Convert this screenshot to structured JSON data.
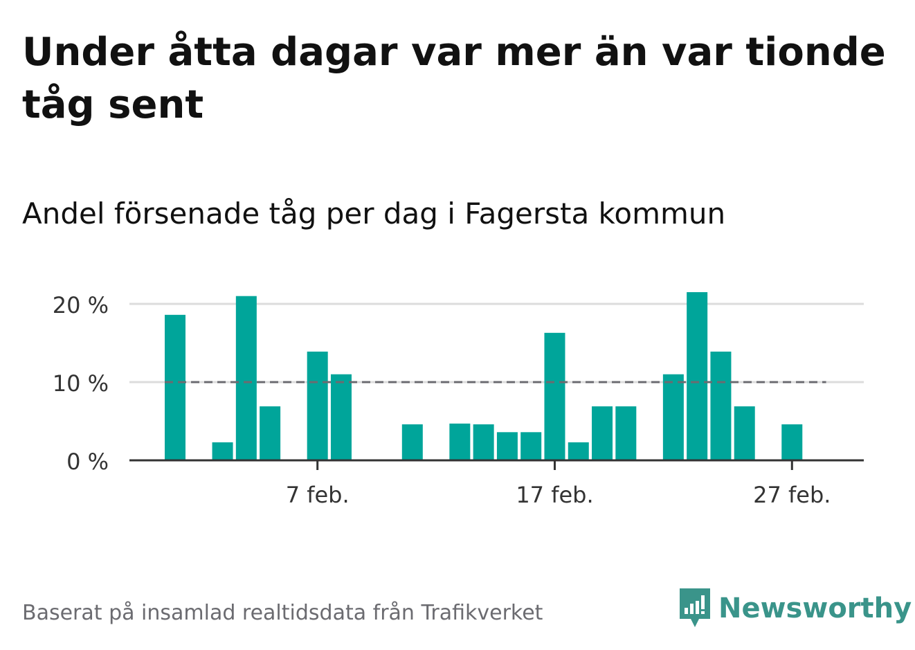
{
  "title": "Under åtta dagar var mer än var tionde tåg sent",
  "subtitle": "Andel försenade tåg per dag i Fagersta kommun",
  "footer": "Baserat på insamlad realtidsdata från Trafikverket",
  "brand": {
    "name": "Newsworthy",
    "icon": "newsworthy-logo-icon",
    "color": "#3a948a"
  },
  "chart_data": {
    "type": "bar",
    "x_start_date": "2024-02-01",
    "x_ticks": [
      "7 feb.",
      "17 feb.",
      "27 feb."
    ],
    "y_ticks": [
      "0 %",
      "10 %",
      "20 %"
    ],
    "ylim": [
      0,
      20
    ],
    "grid": true,
    "bar_color": "#00a59a",
    "reference_line": {
      "value": 10,
      "style": "dashed",
      "color": "#6b6b70"
    },
    "days": [
      1,
      2,
      3,
      4,
      5,
      6,
      7,
      8,
      9,
      10,
      11,
      12,
      13,
      14,
      15,
      16,
      17,
      18,
      19,
      20,
      21,
      22,
      23,
      24,
      25,
      26,
      27,
      28
    ],
    "values": [
      18.6,
      0,
      2.3,
      21,
      6.9,
      0,
      13.9,
      11,
      0,
      0,
      4.6,
      0,
      4.7,
      4.6,
      3.6,
      3.6,
      16.3,
      2.3,
      6.9,
      6.9,
      0,
      11,
      21.5,
      13.9,
      6.9,
      0,
      4.6,
      0
    ]
  }
}
